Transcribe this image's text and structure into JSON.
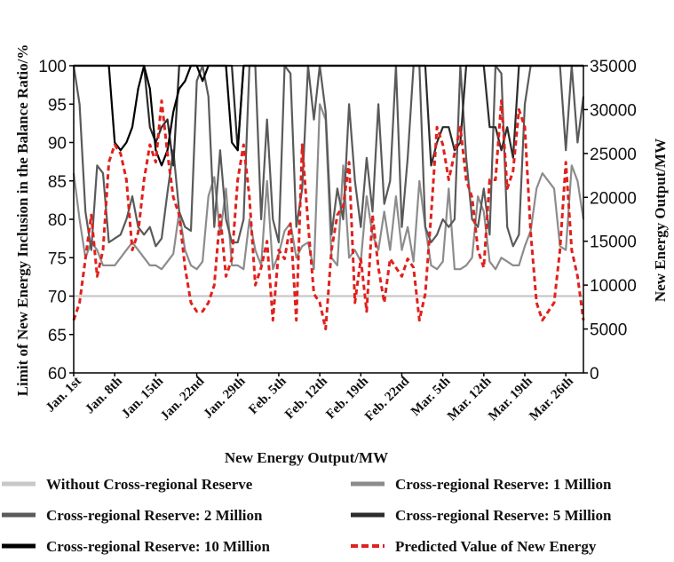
{
  "chart_data": {
    "type": "line",
    "title": "",
    "xlabel": "New Energy Output/MW",
    "ylabel_left": "Limit of New Energy Inclusion in the Balance Ratio/%",
    "ylabel_right": "New Energy Output/MW",
    "ylim_left": [
      60,
      100
    ],
    "ylim_right": [
      0,
      35000
    ],
    "yticks_left": [
      "60",
      "65",
      "70",
      "75",
      "80",
      "85",
      "90",
      "95",
      "100"
    ],
    "yticks_right": [
      "0",
      "5000",
      "10000",
      "15000",
      "20000",
      "25000",
      "30000",
      "35000"
    ],
    "x_tick_labels": [
      "Jan. 1st",
      "Jan. 8th",
      "Jan. 15th",
      "Jan. 22nd",
      "Jan. 29th",
      "Feb. 5th",
      "Feb. 12th",
      "Feb. 19th",
      "Feb. 22nd",
      "Mar. 5th",
      "Mar. 12th",
      "Mar. 19th",
      "Mar. 26th"
    ],
    "x_tick_day_index": [
      0,
      7,
      14,
      21,
      28,
      35,
      42,
      49,
      56,
      63,
      70,
      77,
      84
    ],
    "grid": false,
    "legend_position": "bottom",
    "series": [
      {
        "name": "Without Cross-regional Reserve",
        "axis": "left",
        "color": "#c8c8c8",
        "dash": "solid",
        "values": [
          70,
          70,
          70,
          70,
          70,
          70,
          70,
          70,
          70,
          70,
          70,
          70,
          70,
          70,
          70,
          70,
          70,
          70,
          70,
          70,
          70,
          70,
          70,
          70,
          70,
          70,
          70,
          70,
          70,
          70,
          70,
          70,
          70,
          70,
          70,
          70,
          70,
          70,
          70,
          70,
          70,
          70,
          70,
          70,
          70,
          70,
          70,
          70,
          70,
          70,
          70,
          70,
          70,
          70,
          70,
          70,
          70,
          70,
          70,
          70,
          70,
          70,
          70,
          70,
          70,
          70,
          70,
          70,
          70,
          70,
          70,
          70,
          70,
          70,
          70,
          70,
          70,
          70,
          70,
          70,
          70,
          70,
          70,
          70,
          70,
          70,
          70,
          70
        ]
      },
      {
        "name": "Cross-regional Reserve: 1 Million",
        "axis": "left",
        "color": "#8c8c8c",
        "dash": "solid",
        "values": [
          86,
          80,
          75,
          77,
          76,
          74,
          74,
          74,
          75,
          76,
          77,
          76,
          75,
          74,
          74,
          73.5,
          74.5,
          75.5,
          81,
          76,
          74,
          73.5,
          74.5,
          83,
          85.5,
          78,
          84,
          74,
          74,
          73.5,
          80,
          76,
          74,
          85,
          73.5,
          75.5,
          78.5,
          79.5,
          75,
          76.5,
          77,
          73.5,
          95,
          93,
          75,
          74,
          87,
          75,
          76,
          74.5,
          83,
          78,
          76,
          81,
          76,
          83,
          76,
          79,
          74.5,
          85,
          79,
          74,
          73.5,
          74.5,
          84,
          73.5,
          73.5,
          74,
          75,
          83,
          81,
          74.5,
          73.5,
          75,
          74.5,
          74,
          74,
          76.5,
          78.5,
          84,
          86,
          85,
          84,
          76.5,
          76,
          87,
          85,
          80
        ]
      },
      {
        "name": "Cross-regional Reserve: 2 Million",
        "axis": "left",
        "color": "#5a5a5a",
        "dash": "solid",
        "values": [
          100,
          95,
          81,
          76,
          87,
          86,
          77,
          77.5,
          78,
          80,
          83,
          79,
          78,
          79,
          76.5,
          77.5,
          83.5,
          89,
          81,
          79,
          78.5,
          98,
          100,
          96,
          79,
          89,
          80,
          77,
          77,
          80,
          100,
          100,
          80,
          93,
          80,
          77,
          100,
          99,
          79,
          84,
          100,
          93,
          100,
          94,
          78,
          84,
          80,
          95,
          85,
          79,
          88,
          81,
          95,
          82,
          85,
          100,
          79,
          88,
          100,
          100,
          79,
          77,
          78,
          80,
          79,
          80,
          100,
          88,
          80,
          79,
          84,
          78,
          100,
          99,
          79,
          76.5,
          78,
          95,
          100,
          100,
          100,
          100,
          100,
          100,
          89,
          100,
          90,
          96
        ]
      },
      {
        "name": "Cross-regional Reserve: 5 Million",
        "axis": "left",
        "color": "#2c2c2c",
        "dash": "solid",
        "values": [
          100,
          100,
          100,
          100,
          100,
          100,
          100,
          100,
          100,
          100,
          100,
          100,
          100,
          92,
          90,
          92,
          93,
          87,
          100,
          100,
          100,
          100,
          100,
          100,
          100,
          100,
          100,
          100,
          89,
          100,
          100,
          100,
          100,
          100,
          100,
          100,
          100,
          100,
          100,
          100,
          100,
          100,
          100,
          100,
          100,
          100,
          100,
          100,
          100,
          100,
          100,
          100,
          100,
          100,
          100,
          100,
          100,
          100,
          100,
          100,
          100,
          87,
          90,
          92,
          92,
          89,
          90,
          100,
          100,
          100,
          100,
          92,
          92,
          89,
          92,
          88,
          100,
          100,
          100,
          100,
          100,
          100,
          100,
          100,
          100,
          100,
          100,
          100
        ]
      },
      {
        "name": "Cross-regional Reserve: 10 Million",
        "axis": "left",
        "color": "#000000",
        "dash": "solid",
        "values": [
          100,
          100,
          100,
          100,
          100,
          100,
          100,
          90,
          89,
          90,
          92,
          97,
          100,
          97,
          89,
          87,
          89,
          94,
          97,
          98,
          100,
          100,
          98,
          100,
          100,
          100,
          100,
          90,
          89,
          100,
          100,
          100,
          100,
          100,
          100,
          100,
          100,
          100,
          100,
          100,
          100,
          100,
          100,
          100,
          100,
          100,
          100,
          100,
          100,
          100,
          100,
          100,
          100,
          100,
          100,
          100,
          100,
          100,
          100,
          100,
          100,
          100,
          100,
          100,
          100,
          100,
          100,
          100,
          100,
          100,
          100,
          100,
          100,
          100,
          100,
          100,
          100,
          100,
          100,
          100,
          100,
          100,
          100,
          100,
          100,
          100,
          100,
          100
        ]
      },
      {
        "name": "Predicted Value of New Energy",
        "axis": "right",
        "color": "#e0211d",
        "dash": "dashed",
        "values": [
          6000,
          8000,
          13000,
          18000,
          11000,
          14000,
          24000,
          26000,
          25000,
          22000,
          14000,
          16000,
          22000,
          26000,
          24000,
          31000,
          25000,
          20000,
          18000,
          12000,
          8000,
          7000,
          7000,
          8000,
          10000,
          18000,
          11000,
          13000,
          22000,
          26000,
          20000,
          10000,
          12000,
          15000,
          6000,
          14000,
          13000,
          17000,
          6000,
          26000,
          17000,
          9000,
          8000,
          5000,
          14000,
          18000,
          19000,
          24000,
          8000,
          13000,
          7000,
          18000,
          12000,
          8000,
          13000,
          12000,
          11000,
          13000,
          12000,
          6000,
          9000,
          18000,
          28000,
          26000,
          22000,
          25000,
          28000,
          22000,
          20000,
          14000,
          12000,
          22000,
          22000,
          31000,
          21000,
          23000,
          30000,
          28000,
          16000,
          8000,
          6000,
          7000,
          8000,
          14000,
          24000,
          14000,
          11000,
          6000
        ]
      }
    ]
  }
}
